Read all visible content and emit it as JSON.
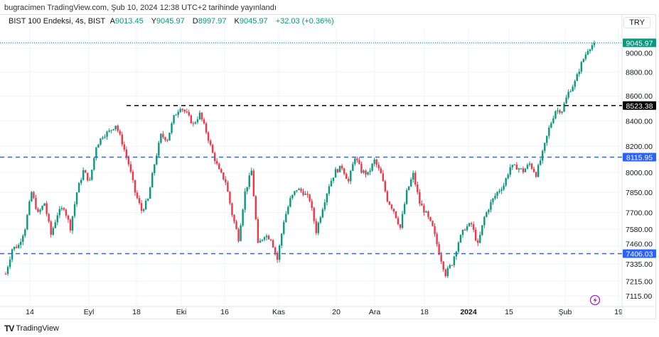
{
  "header": {
    "published": "bugracimen TradingView.com, Şub 10, 2024 12:38 UTC+2 tarihinde yayınlandı"
  },
  "legend": {
    "symbol": "BIST 100 Endeksi, 4s, BIST",
    "open_label": "A",
    "open": "9013.45",
    "high_label": "Y",
    "high": "9045.97",
    "low_label": "D",
    "low": "8997.97",
    "close_label": "K",
    "close": "9045.97",
    "change": "+32.03 (+0.36%)"
  },
  "currency": "TRY",
  "brand": "TradingView",
  "colors": {
    "up": "#089981",
    "down": "#f23645",
    "level_blue": "#2962ff",
    "level_black": "#000000",
    "lightning": "#9c27b0"
  },
  "chart_data": {
    "type": "candlestick",
    "scale": "log",
    "grid": true,
    "y_ticks": [
      "9000.00",
      "8800.00",
      "8600.00",
      "8400.00",
      "8200.00",
      "8000.00",
      "7850.00",
      "7700.00",
      "7580.00",
      "7460.00",
      "7335.00",
      "7215.00",
      "7115.00"
    ],
    "x_ticks": [
      "14",
      "Eyl",
      "18",
      "Eki",
      "16",
      "Kas",
      "20",
      "Ara",
      "18",
      "2024",
      "15",
      "Şub",
      "19"
    ],
    "last_price": "9045.97",
    "levels": [
      {
        "value": "8523.38",
        "color": "#000000"
      },
      {
        "value": "8115.95",
        "color": "#2962ff"
      },
      {
        "value": "7406.03",
        "color": "#2962ff"
      }
    ],
    "approx_closes": [
      7265,
      7440,
      7465,
      7590,
      7850,
      7690,
      7770,
      7540,
      7690,
      7740,
      7590,
      7850,
      8010,
      7930,
      8200,
      8285,
      8315,
      8370,
      8230,
      8065,
      7850,
      7715,
      7795,
      8065,
      8285,
      8255,
      8430,
      8515,
      8455,
      8370,
      8455,
      8315,
      8145,
      8010,
      7930,
      7690,
      7515,
      7850,
      8010,
      7465,
      7540,
      7515,
      7365,
      7640,
      7795,
      7875,
      7850,
      7795,
      7565,
      7740,
      7905,
      8010,
      8040,
      7930,
      8120,
      8010,
      7985,
      8090,
      7985,
      7795,
      7715,
      7590,
      7850,
      7985,
      7770,
      7690,
      7590,
      7415,
      7265,
      7340,
      7490,
      7590,
      7615,
      7465,
      7665,
      7770,
      7850,
      7905,
      8040,
      8040,
      8010,
      8065,
      7985,
      8145,
      8340,
      8485,
      8485,
      8630,
      8715,
      8870,
      8990,
      9046
    ]
  }
}
